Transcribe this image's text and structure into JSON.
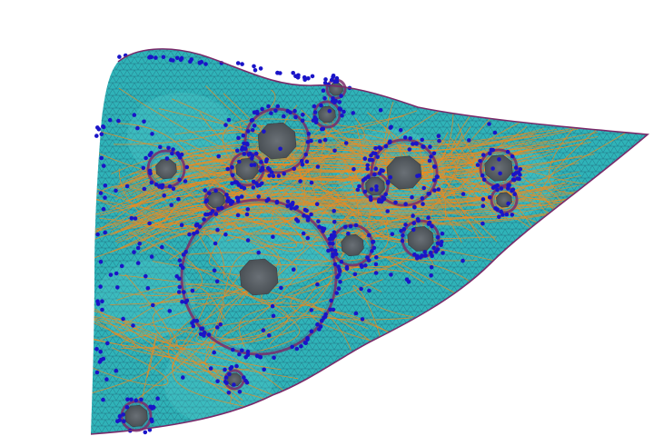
{
  "scene": {
    "description_visible_text": "",
    "colors": {
      "background": "#ffffff",
      "mesh_fill": "#2fb3b8",
      "mesh_fill_light": "#5fd0cf",
      "mesh_lines": "#1d5a6e",
      "boundary": "#7a2a6a",
      "hole_fill": "#5a6065",
      "streamlines": "#f08a1c",
      "points": "#1a14c8"
    },
    "elements": [
      "triangle-mesh-surface",
      "circular-holes",
      "orange-streamlines",
      "blue-sample-points",
      "magenta-boundary-curves"
    ]
  }
}
